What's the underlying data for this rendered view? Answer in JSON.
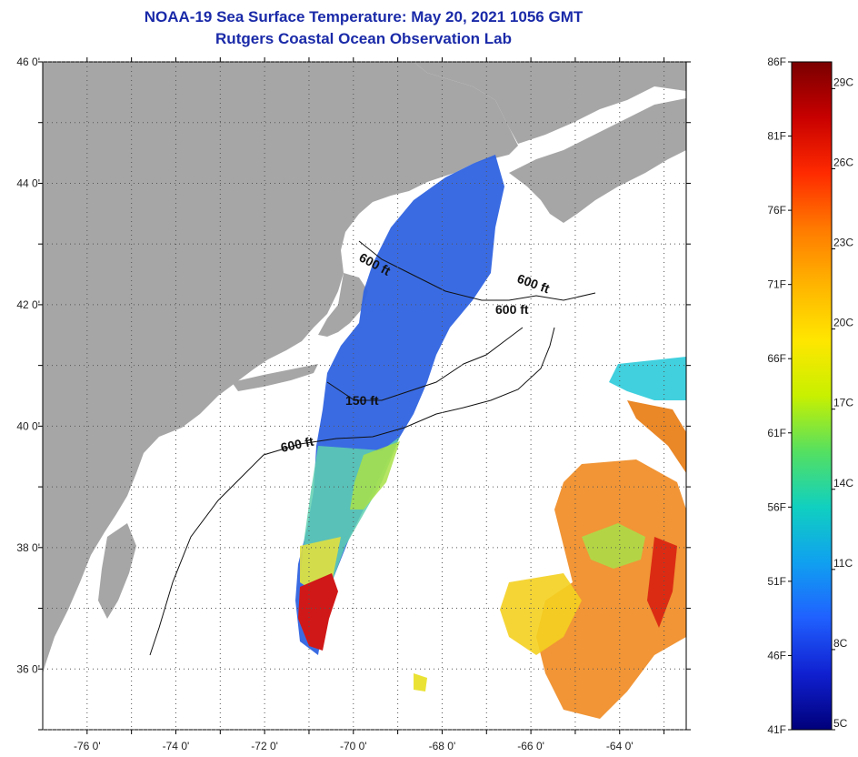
{
  "header": {
    "title": "NOAA-19 Sea Surface Temperature:  May 20, 2021 1056 GMT",
    "subtitle": "Rutgers Coastal Ocean Observation Lab"
  },
  "axes": {
    "lon_labels": [
      "-76 0'",
      "-74 0'",
      "-72 0'",
      "-70 0'",
      "-68 0'",
      "-66 0'",
      "-64 0'"
    ],
    "lat_labels": [
      "46 0'",
      "44 0'",
      "42 0'",
      "40 0'",
      "38 0'",
      "36 0'"
    ],
    "lon_range": [
      -77,
      -62.5
    ],
    "lat_range": [
      35,
      46
    ]
  },
  "contours": {
    "labels": [
      "600 ft",
      "600 ft",
      "600 ft",
      "150 ft",
      "600 ft"
    ]
  },
  "colorbar": {
    "fahrenheit_labels": [
      "86F",
      "81F",
      "76F",
      "71F",
      "66F",
      "61F",
      "56F",
      "51F",
      "46F",
      "41F"
    ],
    "celsius_labels": [
      "29C",
      "26C",
      "23C",
      "20C",
      "17C",
      "14C",
      "11C",
      "8C",
      "5C"
    ],
    "range_f": [
      41,
      86
    ],
    "range_c": [
      5,
      30
    ],
    "gradient_colors": [
      "#7a0000",
      "#c80000",
      "#ff2a00",
      "#ff7a00",
      "#ffb400",
      "#ffe600",
      "#c8f000",
      "#55e060",
      "#10d0c0",
      "#10a0f0",
      "#2060ff",
      "#1020d0",
      "#00007a"
    ]
  },
  "colors": {
    "land": "#a6a6a6",
    "ocean": "#ffffff",
    "title": "#1a2aa8"
  }
}
